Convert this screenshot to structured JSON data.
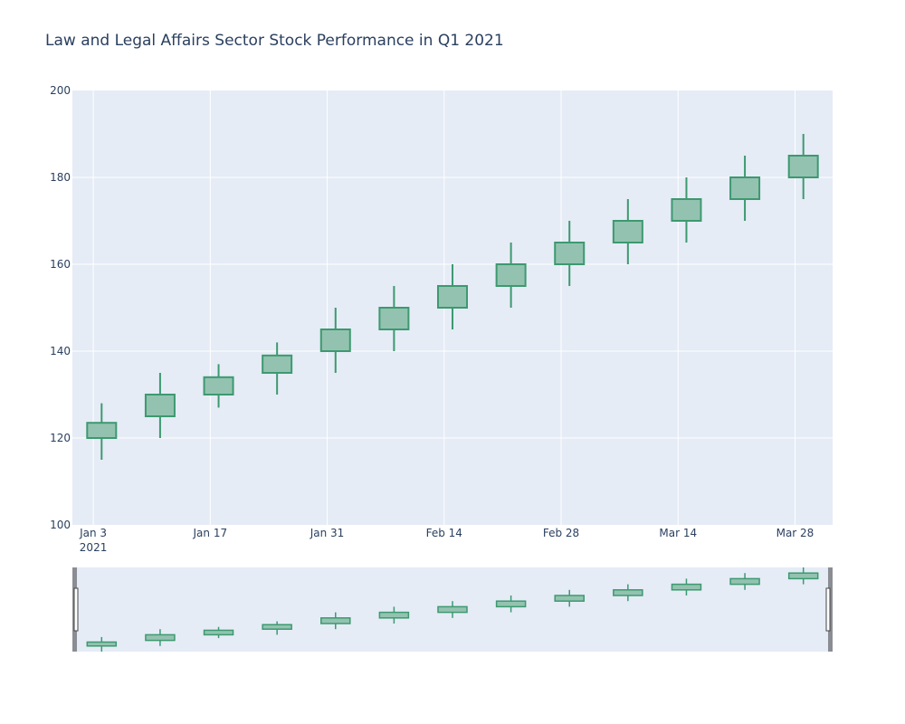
{
  "chart_data": {
    "type": "candlestick",
    "title": "Law and Legal Affairs Sector Stock Performance in Q1 2021",
    "xlabel": "",
    "ylabel": "",
    "ylim": [
      100,
      200
    ],
    "y_ticks": [
      "100",
      "120",
      "140",
      "160",
      "180",
      "200"
    ],
    "x_ticks": [
      {
        "date": "2021-01-03",
        "label": "Jan 3",
        "sublabel": "2021"
      },
      {
        "date": "2021-01-17",
        "label": "Jan 17",
        "sublabel": ""
      },
      {
        "date": "2021-01-31",
        "label": "Jan 31",
        "sublabel": ""
      },
      {
        "date": "2021-02-14",
        "label": "Feb 14",
        "sublabel": ""
      },
      {
        "date": "2021-02-28",
        "label": "Feb 28",
        "sublabel": ""
      },
      {
        "date": "2021-03-14",
        "label": "Mar 14",
        "sublabel": ""
      },
      {
        "date": "2021-03-28",
        "label": "Mar 28",
        "sublabel": ""
      }
    ],
    "grid": true,
    "range_slider": true,
    "increasing_color": "#3d9970",
    "increasing_fill": "#93c3b0",
    "plot_bg": "#e5ecf6",
    "candles": [
      {
        "date": "2021-01-04",
        "open": 120,
        "high": 128,
        "low": 115,
        "close": 123.5
      },
      {
        "date": "2021-01-11",
        "open": 125,
        "high": 135,
        "low": 120,
        "close": 130
      },
      {
        "date": "2021-01-18",
        "open": 130,
        "high": 137,
        "low": 127,
        "close": 134
      },
      {
        "date": "2021-01-25",
        "open": 135,
        "high": 142,
        "low": 130,
        "close": 139
      },
      {
        "date": "2021-02-01",
        "open": 140,
        "high": 150,
        "low": 135,
        "close": 145
      },
      {
        "date": "2021-02-08",
        "open": 145,
        "high": 155,
        "low": 140,
        "close": 150
      },
      {
        "date": "2021-02-15",
        "open": 150,
        "high": 160,
        "low": 145,
        "close": 155
      },
      {
        "date": "2021-02-22",
        "open": 155,
        "high": 165,
        "low": 150,
        "close": 160
      },
      {
        "date": "2021-03-01",
        "open": 160,
        "high": 170,
        "low": 155,
        "close": 165
      },
      {
        "date": "2021-03-08",
        "open": 165,
        "high": 175,
        "low": 160,
        "close": 170
      },
      {
        "date": "2021-03-15",
        "open": 170,
        "high": 180,
        "low": 165,
        "close": 175
      },
      {
        "date": "2021-03-22",
        "open": 175,
        "high": 185,
        "low": 170,
        "close": 180
      },
      {
        "date": "2021-03-29",
        "open": 180,
        "high": 190,
        "low": 175,
        "close": 185
      }
    ]
  }
}
